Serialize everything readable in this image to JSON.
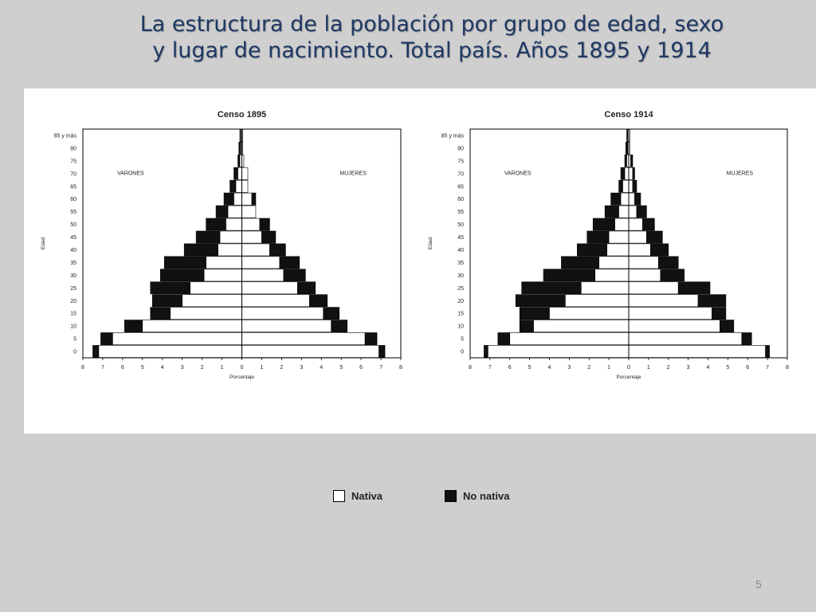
{
  "slide": {
    "title_line1": "La estructura de la población por grupo de edad, sexo",
    "title_line2": "y lugar de nacimiento. Total país. Años 1895 y 1914",
    "page_number": "5"
  },
  "legend": {
    "items": [
      {
        "label": "Nativa",
        "color": "#ffffff"
      },
      {
        "label": "No nativa",
        "color": "#111111"
      }
    ]
  },
  "chart_data": [
    {
      "type": "bar",
      "title": "Censo 1895",
      "xlabel": "Porcentaje",
      "ylabel": "Edad",
      "left_label": "VARONES",
      "right_label": "MUJERES",
      "xlim": [
        -8,
        8
      ],
      "x_ticks": [
        "8",
        "7",
        "6",
        "5",
        "4",
        "3",
        "2",
        "1",
        "0",
        "1",
        "2",
        "3",
        "4",
        "5",
        "6",
        "7",
        "8"
      ],
      "age_groups": [
        "0",
        "5",
        "10",
        "15",
        "20",
        "25",
        "30",
        "35",
        "40",
        "45",
        "50",
        "55",
        "60",
        "65",
        "70",
        "75",
        "80",
        "85 y más"
      ],
      "series": [
        {
          "name": "Nativa",
          "side": "varones",
          "values": [
            7.2,
            6.5,
            5.0,
            3.6,
            3.0,
            2.6,
            1.9,
            1.8,
            1.2,
            1.1,
            0.8,
            0.7,
            0.4,
            0.3,
            0.2,
            0.1,
            0.05,
            0.05
          ]
        },
        {
          "name": "No nativa",
          "side": "varones",
          "values": [
            0.3,
            0.6,
            0.9,
            1.0,
            1.5,
            2.0,
            2.2,
            2.1,
            1.7,
            1.2,
            1.0,
            0.6,
            0.5,
            0.3,
            0.2,
            0.1,
            0.1,
            0.05
          ]
        },
        {
          "name": "Nativa",
          "side": "mujeres",
          "values": [
            6.9,
            6.2,
            4.5,
            4.1,
            3.4,
            2.8,
            2.1,
            1.9,
            1.4,
            1.0,
            0.9,
            0.7,
            0.5,
            0.3,
            0.3,
            0.1,
            0.05,
            0.05
          ]
        },
        {
          "name": "No nativa",
          "side": "mujeres",
          "values": [
            0.3,
            0.6,
            0.8,
            0.8,
            0.9,
            0.9,
            1.1,
            1.0,
            0.8,
            0.7,
            0.5,
            0.0,
            0.2,
            0.0,
            0.0,
            0.0,
            0.0,
            0.0
          ]
        }
      ]
    },
    {
      "type": "bar",
      "title": "Censo 1914",
      "xlabel": "Porcentaje",
      "ylabel": "Edad",
      "left_label": "VARONES",
      "right_label": "MUJERES",
      "xlim": [
        -8,
        8
      ],
      "x_ticks": [
        "8",
        "7",
        "6",
        "5",
        "4",
        "3",
        "2",
        "1",
        "0",
        "1",
        "2",
        "3",
        "4",
        "5",
        "6",
        "7",
        "8"
      ],
      "age_groups": [
        "0",
        "5",
        "10",
        "15",
        "20",
        "25",
        "30",
        "35",
        "40",
        "45",
        "50",
        "55",
        "60",
        "65",
        "70",
        "75",
        "80",
        "85 y más"
      ],
      "series": [
        {
          "name": "Nativa",
          "side": "varones",
          "values": [
            7.1,
            6.0,
            4.8,
            4.0,
            3.2,
            2.4,
            1.7,
            1.5,
            1.1,
            1.0,
            0.7,
            0.5,
            0.4,
            0.3,
            0.2,
            0.1,
            0.05,
            0.05
          ]
        },
        {
          "name": "No nativa",
          "side": "varones",
          "values": [
            0.2,
            0.6,
            0.7,
            1.5,
            2.5,
            3.0,
            2.6,
            1.9,
            1.5,
            1.1,
            1.1,
            0.7,
            0.5,
            0.2,
            0.2,
            0.1,
            0.1,
            0.05
          ]
        },
        {
          "name": "Nativa",
          "side": "mujeres",
          "values": [
            6.9,
            5.7,
            4.6,
            4.2,
            3.5,
            2.5,
            1.6,
            1.5,
            1.1,
            0.9,
            0.7,
            0.4,
            0.3,
            0.2,
            0.2,
            0.1,
            0.05,
            0.05
          ]
        },
        {
          "name": "No nativa",
          "side": "mujeres",
          "values": [
            0.2,
            0.5,
            0.7,
            0.7,
            1.4,
            1.6,
            1.2,
            1.0,
            0.9,
            0.8,
            0.6,
            0.5,
            0.3,
            0.2,
            0.1,
            0.1,
            0.0,
            0.0
          ]
        }
      ]
    }
  ]
}
